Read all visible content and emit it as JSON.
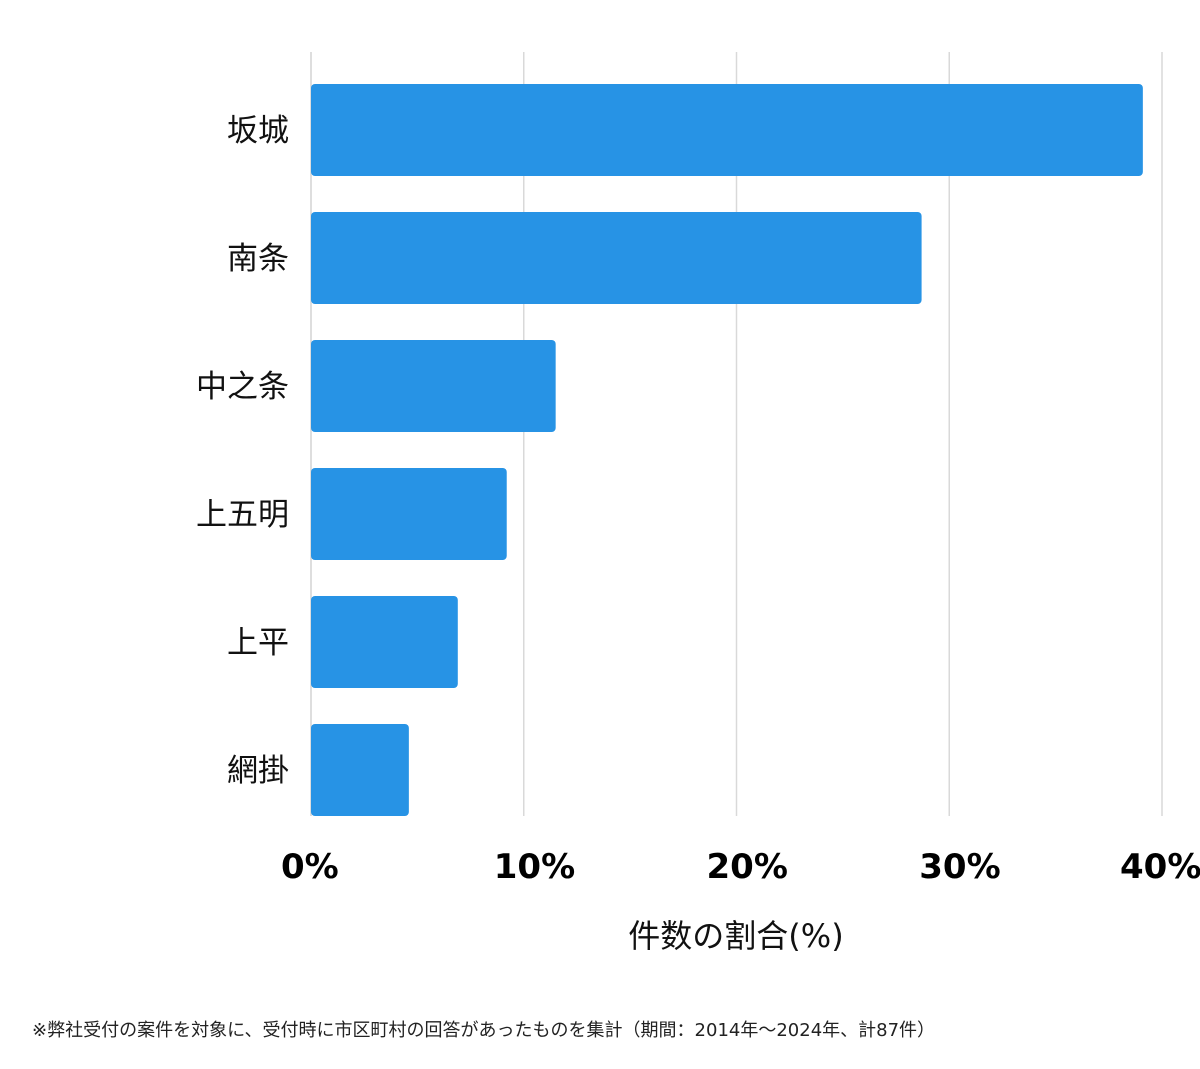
{
  "chart_data": {
    "type": "bar",
    "orientation": "horizontal",
    "categories": [
      "坂城",
      "南条",
      "中之条",
      "上五明",
      "上平",
      "網掛"
    ],
    "values": [
      39.1,
      28.7,
      11.5,
      9.2,
      6.9,
      4.6
    ],
    "xlim": [
      0,
      40
    ],
    "xticks": [
      0,
      10,
      20,
      30,
      40
    ],
    "tick_labels": [
      "0%",
      "10%",
      "20%",
      "30%",
      "40%"
    ],
    "xlabel": "件数の割合(%)",
    "grid": true,
    "bar_color": "#2793e5",
    "grid_color": "#d9d9d9"
  },
  "footnote": "※弊社受付の案件を対象に、受付時に市区町村の回答があったものを集計（期間：2014年～2024年、計87件）"
}
